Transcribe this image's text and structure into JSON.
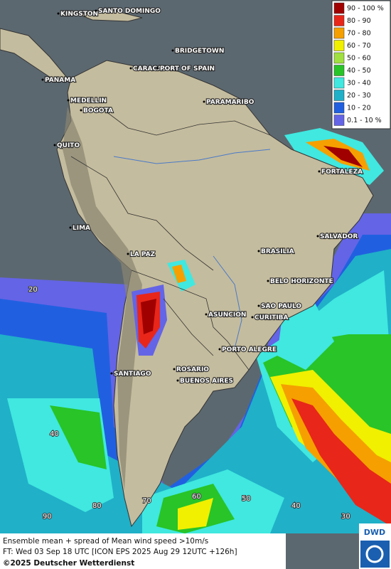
{
  "legend": {
    "items": [
      {
        "label": "90 - 100 %",
        "color": "#a00000"
      },
      {
        "label": "80 - 90",
        "color": "#e8261a"
      },
      {
        "label": "70 - 80",
        "color": "#f5a000"
      },
      {
        "label": "60 - 70",
        "color": "#f0f000"
      },
      {
        "label": "50 - 60",
        "color": "#a0e040"
      },
      {
        "label": "40 - 50",
        "color": "#28c428"
      },
      {
        "label": "30 - 40",
        "color": "#40e8e0"
      },
      {
        "label": "20 - 30",
        "color": "#20b0c8"
      },
      {
        "label": "10 - 20",
        "color": "#2060e0"
      },
      {
        "label": "0.1 - 10 %",
        "color": "#6464e6"
      }
    ]
  },
  "cities": [
    "KINGSTON",
    "SANTO DOMINGO",
    "BRIDGETOWN",
    "CARACAS",
    "PORT OF SPAIN",
    "PANAMA",
    "MEDELLIN",
    "BOGOTA",
    "PARAMARIBO",
    "QUITO",
    "FORTALEZA",
    "LIMA",
    "SALVADOR",
    "LA PAZ",
    "BRASILIA",
    "BELO HORIZONTE",
    "ASUNCION",
    "SAO PAULO",
    "CURITIBA",
    "PORTO ALEGRE",
    "SANTIAGO",
    "ROSARIO",
    "BUENOS AIRES"
  ],
  "grid_labels": [
    "20",
    "40",
    "90",
    "80",
    "70",
    "60",
    "50",
    "40",
    "30"
  ],
  "footer": {
    "line1": "Ensemble mean + spread of Mean wind speed >10m/s",
    "line2": "FT: Wed 03 Sep 18 UTC [ICON EPS 2025 Aug 29 12UTC +126h]",
    "line3": "©2025 Deutscher Wetterdienst",
    "logo": "DWD"
  }
}
